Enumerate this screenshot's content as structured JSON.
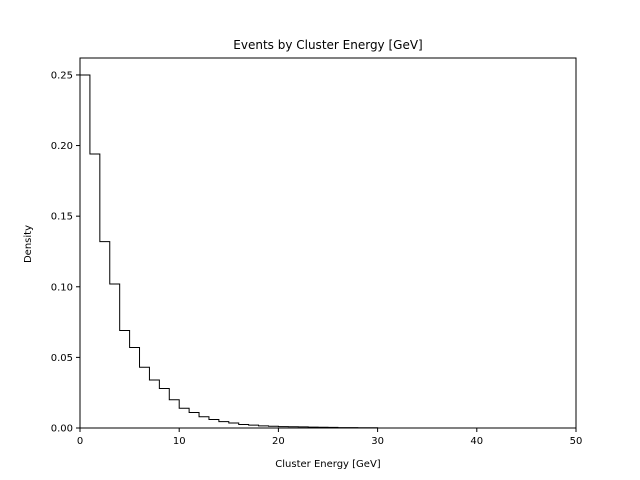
{
  "chart_data": {
    "type": "histogram",
    "title": "Events by Cluster Energy [GeV]",
    "xlabel": "Cluster Energy [GeV]",
    "ylabel": "Density",
    "xlim": [
      0,
      50
    ],
    "ylim": [
      0,
      0.262
    ],
    "xticks": [
      0,
      10,
      20,
      30,
      40,
      50
    ],
    "xtick_labels": [
      "0",
      "10",
      "20",
      "30",
      "40",
      "50"
    ],
    "yticks": [
      0.0,
      0.05,
      0.1,
      0.15,
      0.2,
      0.25
    ],
    "ytick_labels": [
      "0.00",
      "0.05",
      "0.10",
      "0.15",
      "0.20",
      "0.25"
    ],
    "grid": false,
    "histtype": "step",
    "line_color": "#000000",
    "bin_edges": [
      0,
      1,
      2,
      3,
      4,
      5,
      6,
      7,
      8,
      9,
      10,
      11,
      12,
      13,
      14,
      15,
      16,
      17,
      18,
      19,
      20,
      21,
      22,
      23,
      24,
      25,
      26,
      27,
      28,
      29,
      30
    ],
    "values": [
      0.25,
      0.194,
      0.132,
      0.102,
      0.069,
      0.057,
      0.043,
      0.034,
      0.028,
      0.02,
      0.014,
      0.011,
      0.008,
      0.006,
      0.0045,
      0.0035,
      0.0025,
      0.002,
      0.0015,
      0.0012,
      0.001,
      0.0009,
      0.0008,
      0.0006,
      0.0005,
      0.0004,
      0.0003,
      0.0003,
      0.0002,
      0.0002
    ]
  }
}
